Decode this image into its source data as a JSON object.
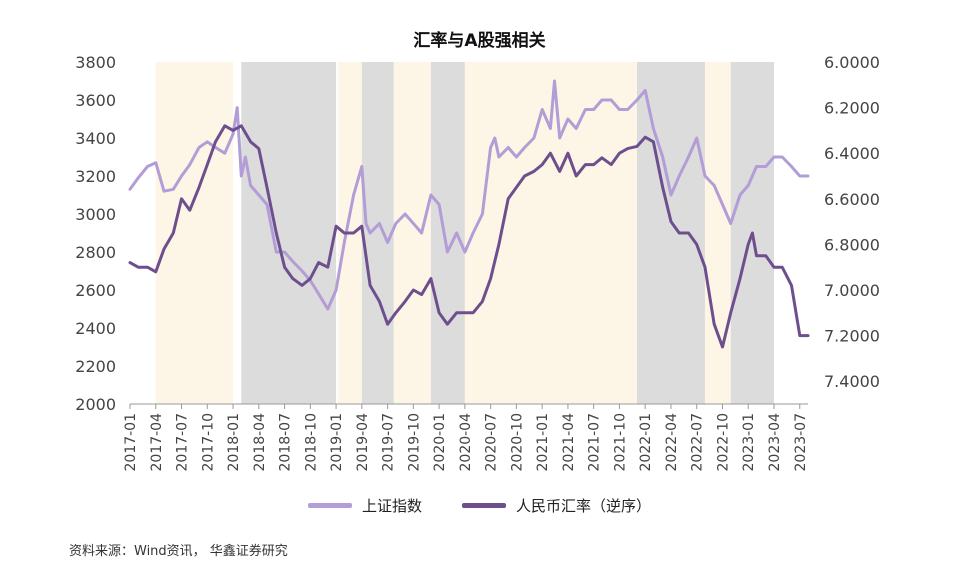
{
  "source": "资料来源：Wind资讯， 华鑫证券研究",
  "chart_data": {
    "type": "line",
    "title": "汇率与A股强相关",
    "y_left": {
      "ticks": [
        "3800",
        "3600",
        "3400",
        "3200",
        "3000",
        "2800",
        "2600",
        "2400",
        "2200",
        "2000"
      ],
      "min": 2000,
      "max": 3800
    },
    "y_right": {
      "ticks": [
        "6.0000",
        "6.2000",
        "6.4000",
        "6.6000",
        "6.8000",
        "7.0000",
        "7.2000",
        "7.4000"
      ],
      "min": 6.0,
      "max": 7.5,
      "reversed": true
    },
    "x_ticks": [
      "2017-01",
      "2017-04",
      "2017-07",
      "2017-10",
      "2018-01",
      "2018-04",
      "2018-07",
      "2018-10",
      "2019-01",
      "2019-04",
      "2019-07",
      "2019-10",
      "2020-01",
      "2020-04",
      "2020-07",
      "2020-10",
      "2021-01",
      "2021-04",
      "2021-07",
      "2021-10",
      "2022-01",
      "2022-04",
      "2022-07",
      "2022-10",
      "2023-01",
      "2023-04",
      "2023-07"
    ],
    "shaded_regions": [
      {
        "start": 2017.25,
        "end": 2018.0,
        "color": "#fdf6e6"
      },
      {
        "start": 2018.08,
        "end": 2019.0,
        "color": "#dcdcdc"
      },
      {
        "start": 2019.02,
        "end": 2019.25,
        "color": "#fdf6e6"
      },
      {
        "start": 2019.25,
        "end": 2019.56,
        "color": "#dcdcdc"
      },
      {
        "start": 2019.56,
        "end": 2019.92,
        "color": "#fdf6e6"
      },
      {
        "start": 2019.92,
        "end": 2020.25,
        "color": "#dcdcdc"
      },
      {
        "start": 2020.25,
        "end": 2021.92,
        "color": "#fdf6e6"
      },
      {
        "start": 2021.92,
        "end": 2022.58,
        "color": "#dcdcdc"
      },
      {
        "start": 2022.58,
        "end": 2022.83,
        "color": "#fdf6e6"
      },
      {
        "start": 2022.83,
        "end": 2023.25,
        "color": "#dcdcdc"
      }
    ],
    "series": [
      {
        "name": "上证指数",
        "axis": "left",
        "color": "#b29dd6",
        "x": [
          2017.0,
          2017.08,
          2017.17,
          2017.25,
          2017.33,
          2017.42,
          2017.5,
          2017.58,
          2017.67,
          2017.75,
          2017.83,
          2017.92,
          2018.0,
          2018.04,
          2018.08,
          2018.12,
          2018.17,
          2018.25,
          2018.33,
          2018.42,
          2018.5,
          2018.58,
          2018.67,
          2018.75,
          2018.83,
          2018.92,
          2019.0,
          2019.08,
          2019.17,
          2019.25,
          2019.29,
          2019.33,
          2019.42,
          2019.5,
          2019.58,
          2019.67,
          2019.75,
          2019.83,
          2019.92,
          2020.0,
          2020.08,
          2020.17,
          2020.25,
          2020.33,
          2020.42,
          2020.5,
          2020.54,
          2020.58,
          2020.67,
          2020.75,
          2020.83,
          2020.92,
          2021.0,
          2021.08,
          2021.12,
          2021.17,
          2021.25,
          2021.33,
          2021.42,
          2021.5,
          2021.58,
          2021.67,
          2021.75,
          2021.83,
          2021.92,
          2022.0,
          2022.08,
          2022.17,
          2022.25,
          2022.33,
          2022.42,
          2022.5,
          2022.58,
          2022.67,
          2022.75,
          2022.83,
          2022.92,
          2023.0,
          2023.08,
          2023.17,
          2023.25,
          2023.33,
          2023.42,
          2023.5,
          2023.58
        ],
        "y": [
          3130,
          3190,
          3250,
          3270,
          3120,
          3130,
          3200,
          3260,
          3350,
          3380,
          3350,
          3320,
          3420,
          3560,
          3200,
          3300,
          3150,
          3100,
          3050,
          2800,
          2800,
          2750,
          2700,
          2650,
          2580,
          2500,
          2600,
          2850,
          3100,
          3250,
          2950,
          2900,
          2950,
          2850,
          2950,
          3000,
          2950,
          2900,
          3100,
          3050,
          2800,
          2900,
          2800,
          2900,
          3000,
          3350,
          3400,
          3300,
          3350,
          3300,
          3350,
          3400,
          3550,
          3450,
          3700,
          3400,
          3500,
          3450,
          3550,
          3550,
          3600,
          3600,
          3550,
          3550,
          3600,
          3650,
          3450,
          3300,
          3100,
          3200,
          3300,
          3400,
          3200,
          3150,
          3050,
          2950,
          3100,
          3150,
          3250,
          3250,
          3300,
          3300,
          3250,
          3200,
          3200
        ]
      },
      {
        "name": "人民币汇率（逆序）",
        "axis": "right",
        "color": "#6e4f8e",
        "x": [
          2017.0,
          2017.08,
          2017.17,
          2017.25,
          2017.33,
          2017.42,
          2017.5,
          2017.58,
          2017.67,
          2017.75,
          2017.83,
          2017.92,
          2018.0,
          2018.08,
          2018.17,
          2018.25,
          2018.33,
          2018.42,
          2018.5,
          2018.58,
          2018.67,
          2018.75,
          2018.83,
          2018.92,
          2019.0,
          2019.08,
          2019.17,
          2019.25,
          2019.33,
          2019.42,
          2019.5,
          2019.58,
          2019.67,
          2019.75,
          2019.83,
          2019.92,
          2020.0,
          2020.08,
          2020.17,
          2020.25,
          2020.33,
          2020.42,
          2020.5,
          2020.58,
          2020.67,
          2020.75,
          2020.83,
          2020.92,
          2021.0,
          2021.08,
          2021.17,
          2021.25,
          2021.33,
          2021.42,
          2021.5,
          2021.58,
          2021.67,
          2021.75,
          2021.83,
          2021.92,
          2022.0,
          2022.08,
          2022.17,
          2022.25,
          2022.33,
          2022.42,
          2022.5,
          2022.58,
          2022.67,
          2022.75,
          2022.83,
          2022.92,
          2023.0,
          2023.04,
          2023.08,
          2023.17,
          2023.25,
          2023.33,
          2023.42,
          2023.5,
          2023.58
        ],
        "y": [
          6.88,
          6.9,
          6.9,
          6.92,
          6.82,
          6.75,
          6.6,
          6.65,
          6.55,
          6.45,
          6.35,
          6.28,
          6.3,
          6.28,
          6.35,
          6.38,
          6.55,
          6.75,
          6.9,
          6.95,
          6.98,
          6.95,
          6.88,
          6.9,
          6.72,
          6.75,
          6.75,
          6.72,
          6.98,
          7.05,
          7.15,
          7.1,
          7.05,
          7.0,
          7.02,
          6.95,
          7.1,
          7.15,
          7.1,
          7.1,
          7.1,
          7.05,
          6.95,
          6.8,
          6.6,
          6.55,
          6.5,
          6.48,
          6.45,
          6.4,
          6.48,
          6.4,
          6.5,
          6.45,
          6.45,
          6.42,
          6.45,
          6.4,
          6.38,
          6.37,
          6.33,
          6.35,
          6.55,
          6.7,
          6.75,
          6.75,
          6.8,
          6.9,
          7.15,
          7.25,
          7.1,
          6.95,
          6.8,
          6.75,
          6.85,
          6.85,
          6.9,
          6.9,
          6.98,
          7.2,
          7.2
        ]
      }
    ]
  }
}
